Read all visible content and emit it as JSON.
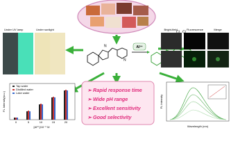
{
  "center": {
    "ion": "Al³⁺",
    "metal": "Al",
    "ligands": [
      "Cl",
      "Cl"
    ]
  },
  "photos": {
    "labels": [
      "Under UV lamp",
      "Under sunlight"
    ]
  },
  "imaging": {
    "labels": [
      "Bright-field",
      "Fluorescence",
      "Merge"
    ]
  },
  "features": [
    "Rapid response time",
    "Wide pH range",
    "Excellent sensitivity",
    "Good selectivity"
  ],
  "bar_plot": {
    "y_label": "FL Intensity(a.u.)",
    "x_label": "[Al³⁺]/10⁻⁶ M",
    "legend": [
      "Tap water",
      "Distilled water",
      "Lake water"
    ],
    "x_ticks": [
      "0",
      "5",
      "10",
      "15",
      "20"
    ]
  },
  "spectrum_plot": {
    "y_label": "FL Intensity",
    "x_label": "Wavelength (nm)"
  }
}
